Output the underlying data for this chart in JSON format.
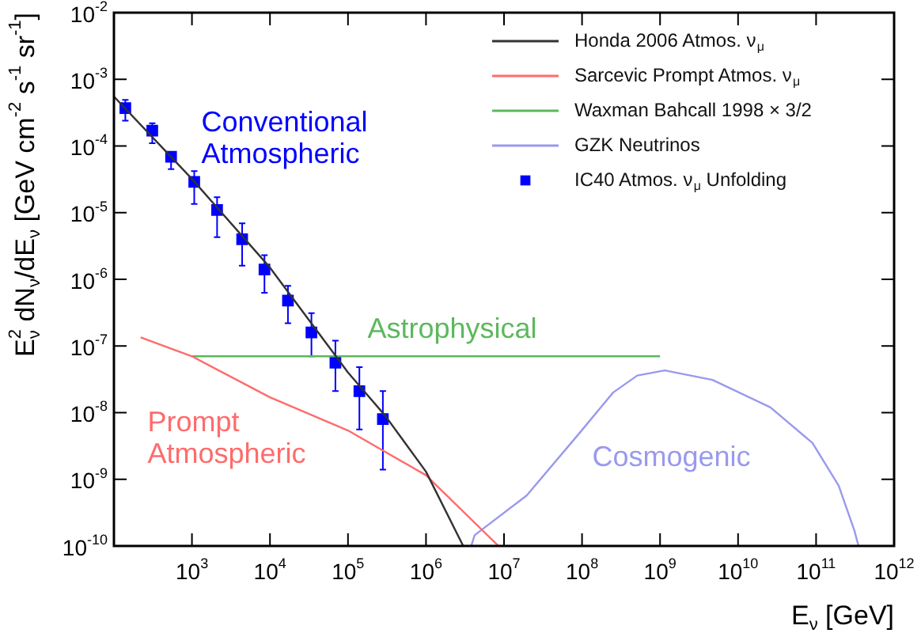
{
  "chart_data": {
    "type": "line",
    "xlabel": "E$_{ν}$ [GeV]",
    "ylabel": "E$^{2}$$_{ν}$ dN$_{ν}$/dE$_{ν}$ [GeV cm$^{-2}$ s$^{-1}$ sr$^{-1}$]",
    "log": "xy",
    "legend": "top right",
    "line_style": "solid",
    "xlim": [
      100,
      1000000000000
    ],
    "ylim": [
      1e-10,
      0.01
    ],
    "xticks": [
      {
        "value": 100,
        "label": null
      },
      {
        "value": 1000,
        "label": "10$^{3}$"
      },
      {
        "value": 10000,
        "label": "10$^{4}$"
      },
      {
        "value": 100000,
        "label": "10$^{5}$"
      },
      {
        "value": 1000000,
        "label": "10$^{6}$"
      },
      {
        "value": 10000000,
        "label": "10$^{7}$"
      },
      {
        "value": 100000000,
        "label": "10$^{8}$"
      },
      {
        "value": 1000000000,
        "label": "10$^{9}$"
      },
      {
        "value": 10000000000,
        "label": "10$^{10}$"
      },
      {
        "value": 100000000000,
        "label": "10$^{11}$"
      },
      {
        "value": 1000000000000,
        "label": "10$^{12}$"
      }
    ],
    "yticks": [
      {
        "value": 1e-10,
        "label": "10$^{-10}$"
      },
      {
        "value": 1e-09,
        "label": "10$^{-9}$"
      },
      {
        "value": 1e-08,
        "label": "10$^{-8}$"
      },
      {
        "value": 1e-07,
        "label": "10$^{-7}$"
      },
      {
        "value": 1e-06,
        "label": "10$^{-6}$"
      },
      {
        "value": 1e-05,
        "label": "10$^{-5}$"
      },
      {
        "value": 0.0001,
        "label": "10$^{-4}$"
      },
      {
        "value": 0.001,
        "label": "10$^{-3}$"
      },
      {
        "value": 0.01,
        "label": "10$^{-2}$"
      }
    ],
    "series": [
      {
        "name": "Honda 2006 Atmos. ν$_{μ}$",
        "color": "#333333",
        "x": [
          100,
          1000,
          10000,
          100000,
          300000,
          1000000,
          3000000
        ],
        "values": [
          0.00055,
          3.2e-05,
          1.5e-06,
          4e-08,
          9e-09,
          1.3e-09,
          1e-10
        ]
      },
      {
        "name": "Sarcevic Prompt Atmos. ν$_{μ}$",
        "color": "#ff6b6b",
        "x": [
          220,
          1000,
          10000,
          100000,
          1000000,
          8500000
        ],
        "values": [
          1.35e-07,
          7e-08,
          1.7e-08,
          5.4e-09,
          1.15e-09,
          1e-10
        ]
      },
      {
        "name": "Waxman Bahcall 1998 × 3/2",
        "color": "#5cb85c",
        "x": [
          1000,
          1000000000
        ],
        "values": [
          7e-08,
          7e-08
        ]
      },
      {
        "name": "GZK Neutrinos",
        "color": "#9999ee",
        "x": [
          3800000,
          4200000,
          19500000,
          95000000,
          250000000,
          510000000,
          1150000000,
          4700000000,
          26000000000,
          90000000000,
          195000000000,
          310000000000,
          350000000000
        ],
        "values": [
          1e-10,
          1.45e-10,
          5.7e-10,
          5.1e-09,
          2e-08,
          3.6e-08,
          4.3e-08,
          3.1e-08,
          1.2e-08,
          3.5e-09,
          8e-10,
          1.7e-10,
          1e-10
        ]
      },
      {
        "name": "IC40 Atmos. ν$_{μ}$ Unfolding",
        "type": "scatter",
        "marker": "square",
        "color": "#0000ff",
        "x": [
          140,
          310,
          540,
          1070,
          2100,
          4400,
          8500,
          17000,
          34000,
          69000,
          140000,
          280000
        ],
        "values": [
          0.00037,
          0.00017,
          6.9e-05,
          2.9e-05,
          1.1e-05,
          4e-06,
          1.4e-06,
          4.8e-07,
          1.6e-07,
          5.6e-08,
          2.1e-08,
          8e-09
        ],
        "errors": [
          [
            0.00024,
            0.00049
          ],
          [
            0.00011,
            0.00022
          ],
          [
            4.5e-05,
            8e-05
          ],
          [
            1.35e-05,
            4.2e-05
          ],
          [
            4.3e-06,
            1.7e-05
          ],
          [
            1.6e-06,
            6.9e-06
          ],
          [
            6.3e-07,
            2.3e-06
          ],
          [
            2.2e-07,
            8e-07
          ],
          [
            7e-08,
            3.1e-07
          ],
          [
            2.1e-08,
            1.2e-07
          ],
          [
            5.6e-09,
            4.8e-08
          ],
          [
            1.4e-09,
            2.1e-08
          ]
        ]
      }
    ],
    "annotations": [
      "Conventional\nAtmospheric",
      "Astrophysical",
      "Prompt\nAtmospheric",
      "Cosmogenic"
    ]
  }
}
